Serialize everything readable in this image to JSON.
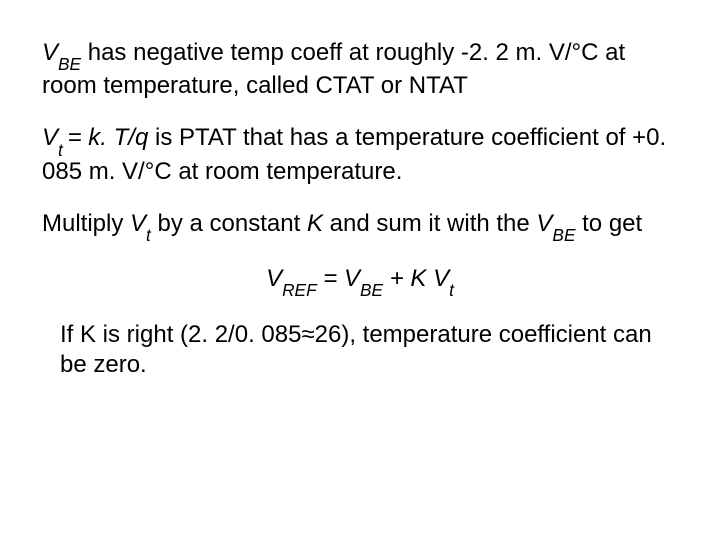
{
  "p1": {
    "vbe": "V",
    "vbe_sub": "BE",
    "part1": " has negative temp coeff at roughly -2. 2 m. V/°C at room temperature, called CTAT or NTAT"
  },
  "p2": {
    "vt": "V",
    "vt_sub": "t ",
    "eq": "= k. T/q",
    "rest": " is PTAT that has a temperature coefficient of +0. 085 m. V/°C at room temperature."
  },
  "p3": {
    "pre": "Multiply ",
    "vt": "V",
    "vt_sub": "t",
    "mid": " by a constant ",
    "K": "K",
    "mid2": " and sum it with the ",
    "vbe": "V",
    "vbe_sub": "BE",
    "end": " to get"
  },
  "eq": {
    "vref": "V",
    "vref_sub": "REF",
    "eq1": " = ",
    "vbe": "V",
    "vbe_sub": "BE",
    "plus": " + ",
    "K": "K ",
    "vt": "V",
    "vt_sub": "t"
  },
  "p4": {
    "text": "If K is right (2. 2/0. 085≈26), temperature coefficient can be zero."
  }
}
